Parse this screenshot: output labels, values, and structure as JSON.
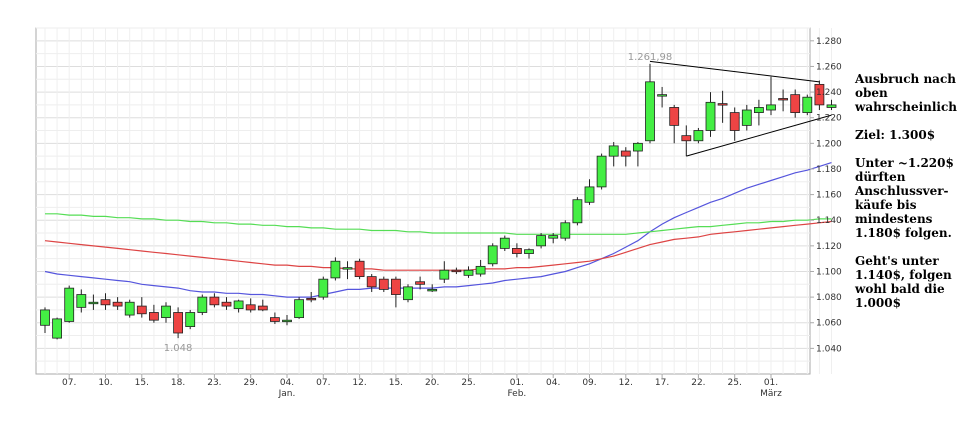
{
  "chart_data": {
    "type": "candlestick",
    "ylim": [
      1020,
      1290
    ],
    "yticks": [
      "1.280",
      "1.260",
      "1.240",
      "1.220",
      "1.200",
      "1.180",
      "1.160",
      "1.140",
      "1.120",
      "1.100",
      "1.080",
      "1.060",
      "1.040"
    ],
    "ytick_values": [
      1280,
      1260,
      1240,
      1220,
      1200,
      1180,
      1160,
      1140,
      1120,
      1100,
      1080,
      1060,
      1040
    ],
    "x_tick_labels": [
      {
        "day": "07.",
        "idx": 2
      },
      {
        "day": "10.",
        "idx": 5
      },
      {
        "day": "15.",
        "idx": 8
      },
      {
        "day": "18.",
        "idx": 11
      },
      {
        "day": "23.",
        "idx": 14
      },
      {
        "day": "29.",
        "idx": 17
      },
      {
        "day": "04.",
        "idx": 20
      },
      {
        "day": "07.",
        "idx": 23
      },
      {
        "day": "12.",
        "idx": 26
      },
      {
        "day": "15.",
        "idx": 29
      },
      {
        "day": "20.",
        "idx": 32
      },
      {
        "day": "25.",
        "idx": 35
      },
      {
        "day": "01.",
        "idx": 39
      },
      {
        "day": "04.",
        "idx": 42
      },
      {
        "day": "09.",
        "idx": 45
      },
      {
        "day": "12.",
        "idx": 48
      },
      {
        "day": "17.",
        "idx": 51
      },
      {
        "day": "22.",
        "idx": 54
      },
      {
        "day": "25.",
        "idx": 57
      },
      {
        "day": "01.",
        "idx": 60
      }
    ],
    "month_labels": [
      {
        "text": "Jan.",
        "idx": 20
      },
      {
        "text": "Feb.",
        "idx": 39
      },
      {
        "text": "März",
        "idx": 60
      }
    ],
    "candles": [
      {
        "o": 1058,
        "h": 1072,
        "l": 1052,
        "c": 1070
      },
      {
        "o": 1048,
        "h": 1064,
        "l": 1047,
        "c": 1063
      },
      {
        "o": 1061,
        "h": 1089,
        "l": 1060,
        "c": 1087
      },
      {
        "o": 1072,
        "h": 1086,
        "l": 1068,
        "c": 1082
      },
      {
        "o": 1076,
        "h": 1082,
        "l": 1070,
        "c": 1076
      },
      {
        "o": 1078,
        "h": 1083,
        "l": 1070,
        "c": 1074
      },
      {
        "o": 1076,
        "h": 1080,
        "l": 1070,
        "c": 1073
      },
      {
        "o": 1066,
        "h": 1078,
        "l": 1064,
        "c": 1076
      },
      {
        "o": 1073,
        "h": 1080,
        "l": 1064,
        "c": 1067
      },
      {
        "o": 1068,
        "h": 1074,
        "l": 1060,
        "c": 1062
      },
      {
        "o": 1064,
        "h": 1076,
        "l": 1060,
        "c": 1073
      },
      {
        "o": 1068,
        "h": 1072,
        "l": 1048,
        "c": 1052
      },
      {
        "o": 1057,
        "h": 1070,
        "l": 1055,
        "c": 1068
      },
      {
        "o": 1068,
        "h": 1082,
        "l": 1066,
        "c": 1080
      },
      {
        "o": 1080,
        "h": 1083,
        "l": 1072,
        "c": 1074
      },
      {
        "o": 1076,
        "h": 1080,
        "l": 1070,
        "c": 1073
      },
      {
        "o": 1071,
        "h": 1078,
        "l": 1068,
        "c": 1077
      },
      {
        "o": 1074,
        "h": 1079,
        "l": 1068,
        "c": 1070
      },
      {
        "o": 1073,
        "h": 1078,
        "l": 1069,
        "c": 1070
      },
      {
        "o": 1064,
        "h": 1068,
        "l": 1059,
        "c": 1061
      },
      {
        "o": 1062,
        "h": 1066,
        "l": 1058,
        "c": 1062
      },
      {
        "o": 1064,
        "h": 1080,
        "l": 1063,
        "c": 1078
      },
      {
        "o": 1079,
        "h": 1084,
        "l": 1076,
        "c": 1078
      },
      {
        "o": 1080,
        "h": 1096,
        "l": 1078,
        "c": 1094
      },
      {
        "o": 1095,
        "h": 1111,
        "l": 1093,
        "c": 1108
      },
      {
        "o": 1103,
        "h": 1108,
        "l": 1094,
        "c": 1103
      },
      {
        "o": 1108,
        "h": 1110,
        "l": 1094,
        "c": 1096
      },
      {
        "o": 1096,
        "h": 1098,
        "l": 1084,
        "c": 1088
      },
      {
        "o": 1094,
        "h": 1096,
        "l": 1084,
        "c": 1086
      },
      {
        "o": 1094,
        "h": 1096,
        "l": 1072,
        "c": 1082
      },
      {
        "o": 1078,
        "h": 1090,
        "l": 1076,
        "c": 1088
      },
      {
        "o": 1092,
        "h": 1096,
        "l": 1086,
        "c": 1090
      },
      {
        "o": 1085,
        "h": 1090,
        "l": 1084,
        "c": 1086
      },
      {
        "o": 1094,
        "h": 1108,
        "l": 1091,
        "c": 1101
      },
      {
        "o": 1101,
        "h": 1103,
        "l": 1098,
        "c": 1100
      },
      {
        "o": 1097,
        "h": 1104,
        "l": 1095,
        "c": 1101
      },
      {
        "o": 1098,
        "h": 1109,
        "l": 1096,
        "c": 1104
      },
      {
        "o": 1106,
        "h": 1122,
        "l": 1104,
        "c": 1120
      },
      {
        "o": 1118,
        "h": 1128,
        "l": 1116,
        "c": 1126
      },
      {
        "o": 1118,
        "h": 1122,
        "l": 1111,
        "c": 1114
      },
      {
        "o": 1114,
        "h": 1118,
        "l": 1110,
        "c": 1117
      },
      {
        "o": 1120,
        "h": 1130,
        "l": 1118,
        "c": 1128
      },
      {
        "o": 1126,
        "h": 1130,
        "l": 1122,
        "c": 1128
      },
      {
        "o": 1126,
        "h": 1140,
        "l": 1124,
        "c": 1138
      },
      {
        "o": 1138,
        "h": 1158,
        "l": 1136,
        "c": 1156
      },
      {
        "o": 1154,
        "h": 1172,
        "l": 1152,
        "c": 1166
      },
      {
        "o": 1166,
        "h": 1192,
        "l": 1164,
        "c": 1190
      },
      {
        "o": 1190,
        "h": 1201,
        "l": 1182,
        "c": 1198
      },
      {
        "o": 1194,
        "h": 1197,
        "l": 1182,
        "c": 1190
      },
      {
        "o": 1194,
        "h": 1201,
        "l": 1182,
        "c": 1200
      },
      {
        "o": 1202,
        "h": 1262,
        "l": 1200,
        "c": 1248
      },
      {
        "o": 1238,
        "h": 1244,
        "l": 1228,
        "c": 1238
      },
      {
        "o": 1228,
        "h": 1230,
        "l": 1200,
        "c": 1214
      },
      {
        "o": 1206,
        "h": 1214,
        "l": 1190,
        "c": 1202
      },
      {
        "o": 1202,
        "h": 1212,
        "l": 1200,
        "c": 1210
      },
      {
        "o": 1210,
        "h": 1240,
        "l": 1205,
        "c": 1232
      },
      {
        "o": 1231,
        "h": 1241,
        "l": 1216,
        "c": 1230
      },
      {
        "o": 1224,
        "h": 1228,
        "l": 1202,
        "c": 1210
      },
      {
        "o": 1214,
        "h": 1230,
        "l": 1210,
        "c": 1226
      },
      {
        "o": 1224,
        "h": 1234,
        "l": 1214,
        "c": 1228
      },
      {
        "o": 1226,
        "h": 1252,
        "l": 1222,
        "c": 1230
      },
      {
        "o": 1235,
        "h": 1242,
        "l": 1225,
        "c": 1234
      },
      {
        "o": 1238,
        "h": 1242,
        "l": 1220,
        "c": 1224
      },
      {
        "o": 1224,
        "h": 1238,
        "l": 1222,
        "c": 1236
      },
      {
        "o": 1246,
        "h": 1249,
        "l": 1226,
        "c": 1230
      },
      {
        "o": 1228,
        "h": 1234,
        "l": 1226,
        "c": 1230
      }
    ],
    "ma_series": [
      {
        "color": "#5555dd",
        "values": [
          1100,
          1098,
          1097,
          1096,
          1095,
          1094,
          1093,
          1092,
          1090,
          1089,
          1088,
          1087,
          1085,
          1084,
          1084,
          1083,
          1083,
          1082,
          1082,
          1081,
          1080,
          1080,
          1080,
          1082,
          1084,
          1086,
          1086,
          1087,
          1087,
          1087,
          1087,
          1087,
          1087,
          1088,
          1088,
          1089,
          1090,
          1091,
          1093,
          1094,
          1095,
          1096,
          1098,
          1100,
          1103,
          1106,
          1110,
          1114,
          1119,
          1124,
          1131,
          1137,
          1142,
          1146,
          1150,
          1154,
          1157,
          1161,
          1165,
          1168,
          1171,
          1174,
          1177,
          1179,
          1182,
          1185
        ]
      },
      {
        "color": "#dd4444",
        "values": [
          1124,
          1123,
          1122,
          1121,
          1120,
          1119,
          1118,
          1117,
          1116,
          1115,
          1114,
          1113,
          1112,
          1111,
          1110,
          1109,
          1108,
          1107,
          1106,
          1105,
          1105,
          1104,
          1104,
          1103,
          1103,
          1102,
          1102,
          1102,
          1101,
          1101,
          1101,
          1101,
          1101,
          1101,
          1101,
          1101,
          1102,
          1102,
          1102,
          1103,
          1103,
          1104,
          1105,
          1106,
          1107,
          1108,
          1110,
          1112,
          1115,
          1118,
          1121,
          1123,
          1125,
          1126,
          1127,
          1129,
          1130,
          1131,
          1132,
          1133,
          1134,
          1135,
          1136,
          1137,
          1138,
          1139
        ]
      },
      {
        "color": "#55dd55",
        "values": [
          1145,
          1145,
          1144,
          1144,
          1143,
          1143,
          1142,
          1142,
          1141,
          1141,
          1140,
          1140,
          1139,
          1139,
          1138,
          1138,
          1137,
          1137,
          1136,
          1136,
          1135,
          1135,
          1134,
          1134,
          1133,
          1133,
          1133,
          1132,
          1132,
          1132,
          1131,
          1131,
          1130,
          1130,
          1130,
          1130,
          1130,
          1130,
          1130,
          1129,
          1129,
          1129,
          1129,
          1129,
          1129,
          1129,
          1129,
          1129,
          1129,
          1130,
          1131,
          1132,
          1133,
          1134,
          1135,
          1135,
          1136,
          1137,
          1138,
          1138,
          1139,
          1139,
          1140,
          1140,
          1141,
          1141
        ]
      }
    ],
    "annotations": {
      "high_label": "1.261,98",
      "high_value": 1262,
      "high_idx": 50,
      "low_label": "1.048",
      "low_value": 1048,
      "low_idx": 11,
      "upper_trendline": {
        "from": {
          "idx": 50,
          "value": 1264
        },
        "to": {
          "idx": 64,
          "value": 1248
        }
      },
      "lower_trendline": {
        "from": {
          "idx": 53,
          "value": 1190
        },
        "to": {
          "idx": 65,
          "value": 1222
        }
      }
    },
    "colors": {
      "up": "#44ee44",
      "down": "#ee4444",
      "grid": "#dddddd",
      "axis": "#aaaaaa"
    }
  },
  "notes": [
    "Ausbruch nach oben wahrscheinlich",
    "Ziel: 1.300$",
    "Unter ~1.220$ dürften Anschlussver-käufe bis mindestens 1.180$ folgen.",
    "Geht's unter 1.140$, folgen wohl bald die 1.000$"
  ]
}
